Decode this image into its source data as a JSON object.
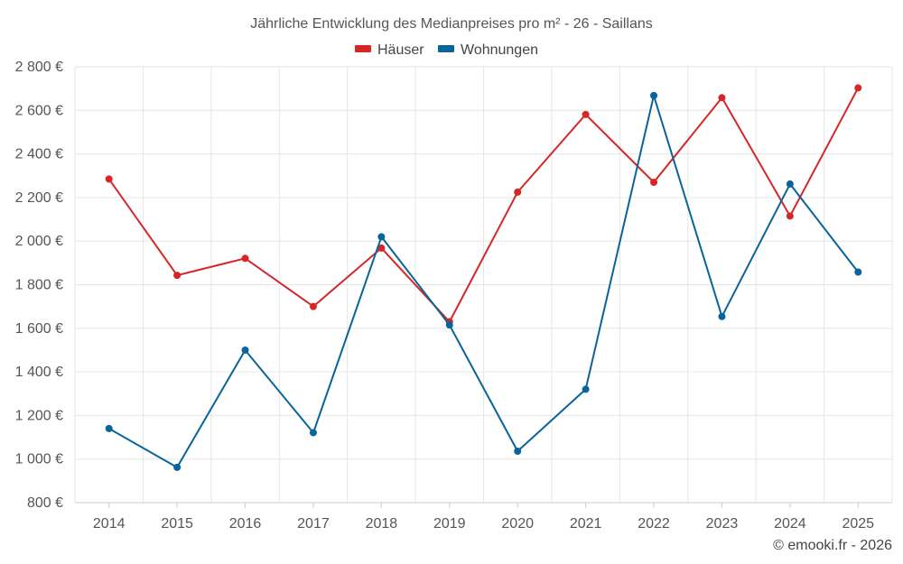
{
  "chart_data": {
    "type": "line",
    "title": "Jährliche Entwicklung des Medianpreises pro m² - 26 - Saillans",
    "xlabel": "",
    "ylabel": "",
    "categories": [
      "2014",
      "2015",
      "2016",
      "2017",
      "2018",
      "2019",
      "2020",
      "2021",
      "2022",
      "2023",
      "2024",
      "2025"
    ],
    "ylim": [
      800,
      2800
    ],
    "yticks": [
      800,
      1000,
      1200,
      1400,
      1600,
      1800,
      2000,
      2200,
      2400,
      2600,
      2800
    ],
    "ytick_labels": [
      "800 €",
      "1 000 €",
      "1 200 €",
      "1 400 €",
      "1 600 €",
      "1 800 €",
      "2 000 €",
      "2 200 €",
      "2 400 €",
      "2 600 €",
      "2 800 €"
    ],
    "grid": true,
    "legend_position": "top-center",
    "series": [
      {
        "name": "Häuser",
        "color": "#d62728",
        "values": [
          2285,
          1843,
          1921,
          1700,
          1968,
          1630,
          2225,
          2581,
          2270,
          2658,
          2115,
          2703
        ]
      },
      {
        "name": "Wohnungen",
        "color": "#08649a",
        "values": [
          1140,
          962,
          1500,
          1121,
          2020,
          1615,
          1036,
          1320,
          2668,
          1654,
          2262,
          1858
        ]
      }
    ]
  },
  "credit": "© emooki.fr - 2026"
}
